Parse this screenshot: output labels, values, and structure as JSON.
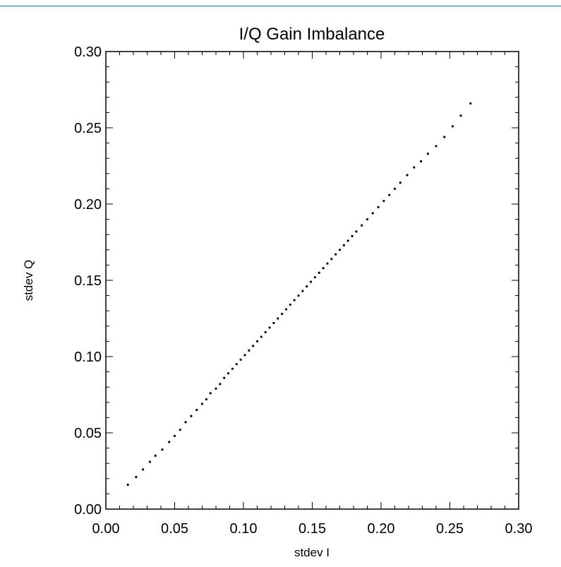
{
  "chart_data": {
    "type": "scatter",
    "title": "I/Q Gain Imbalance",
    "xlabel": "stdev I",
    "ylabel": "stdev Q",
    "xlim": [
      0.0,
      0.3
    ],
    "ylim": [
      0.0,
      0.3
    ],
    "x_ticks": [
      "0.00",
      "0.05",
      "0.10",
      "0.15",
      "0.20",
      "0.25",
      "0.30"
    ],
    "y_ticks": [
      "0.00",
      "0.05",
      "0.10",
      "0.15",
      "0.20",
      "0.25",
      "0.30"
    ],
    "grid": false,
    "colors": {
      "points": "#000000",
      "axes": "#000000",
      "rule": "#2a6f86"
    },
    "series": [
      {
        "points": [
          [
            0.016,
            0.016
          ],
          [
            0.022,
            0.021
          ],
          [
            0.027,
            0.026
          ],
          [
            0.032,
            0.031
          ],
          [
            0.036,
            0.035
          ],
          [
            0.041,
            0.039
          ],
          [
            0.046,
            0.044
          ],
          [
            0.05,
            0.048
          ],
          [
            0.054,
            0.052
          ],
          [
            0.058,
            0.057
          ],
          [
            0.062,
            0.061
          ],
          [
            0.066,
            0.065
          ],
          [
            0.07,
            0.069
          ],
          [
            0.073,
            0.072
          ],
          [
            0.076,
            0.076
          ],
          [
            0.08,
            0.079
          ],
          [
            0.083,
            0.082
          ],
          [
            0.086,
            0.086
          ],
          [
            0.089,
            0.089
          ],
          [
            0.092,
            0.092
          ],
          [
            0.095,
            0.095
          ],
          [
            0.098,
            0.098
          ],
          [
            0.101,
            0.101
          ],
          [
            0.104,
            0.104
          ],
          [
            0.107,
            0.107
          ],
          [
            0.11,
            0.11
          ],
          [
            0.113,
            0.113
          ],
          [
            0.116,
            0.116
          ],
          [
            0.119,
            0.119
          ],
          [
            0.122,
            0.122
          ],
          [
            0.125,
            0.125
          ],
          [
            0.128,
            0.128
          ],
          [
            0.131,
            0.131
          ],
          [
            0.134,
            0.134
          ],
          [
            0.137,
            0.137
          ],
          [
            0.14,
            0.14
          ],
          [
            0.143,
            0.143
          ],
          [
            0.146,
            0.146
          ],
          [
            0.149,
            0.149
          ],
          [
            0.152,
            0.152
          ],
          [
            0.155,
            0.155
          ],
          [
            0.158,
            0.158
          ],
          [
            0.161,
            0.161
          ],
          [
            0.164,
            0.164
          ],
          [
            0.167,
            0.167
          ],
          [
            0.17,
            0.17
          ],
          [
            0.173,
            0.173
          ],
          [
            0.176,
            0.176
          ],
          [
            0.179,
            0.179
          ],
          [
            0.182,
            0.182
          ],
          [
            0.186,
            0.186
          ],
          [
            0.19,
            0.19
          ],
          [
            0.194,
            0.194
          ],
          [
            0.198,
            0.198
          ],
          [
            0.202,
            0.202
          ],
          [
            0.206,
            0.206
          ],
          [
            0.21,
            0.21
          ],
          [
            0.214,
            0.214
          ],
          [
            0.219,
            0.219
          ],
          [
            0.224,
            0.224
          ],
          [
            0.229,
            0.228
          ],
          [
            0.234,
            0.233
          ],
          [
            0.24,
            0.238
          ],
          [
            0.246,
            0.244
          ],
          [
            0.252,
            0.251
          ],
          [
            0.258,
            0.258
          ],
          [
            0.265,
            0.266
          ]
        ]
      }
    ]
  }
}
